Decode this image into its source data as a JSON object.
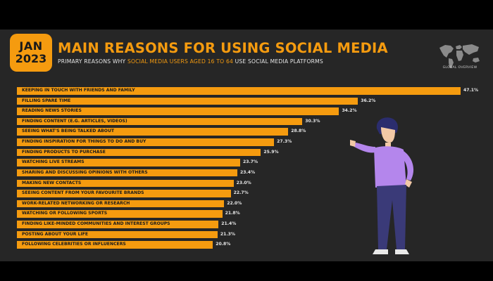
{
  "header": {
    "badge_month": "JAN",
    "badge_year": "2023",
    "title": "MAIN REASONS FOR USING SOCIAL MEDIA",
    "subtitle_prefix": "PRIMARY REASONS WHY ",
    "subtitle_highlight": "SOCIAL MEDIA USERS AGED 16 TO 64",
    "subtitle_suffix": " USE SOCIAL MEDIA PLATFORMS",
    "logo_label": "GLOBAL OVERVIEW"
  },
  "colors": {
    "accent": "#f59b0f",
    "panel": "#262626",
    "background": "#000000"
  },
  "chart_data": {
    "type": "bar",
    "orientation": "horizontal",
    "categories": [
      "KEEPING IN TOUCH WITH FRIENDS AND FAMILY",
      "FILLING SPARE TIME",
      "READING NEWS STORIES",
      "FINDING CONTENT (E.G. ARTICLES, VIDEOS)",
      "SEEING WHAT'S BEING TALKED ABOUT",
      "FINDING INSPIRATION FOR THINGS TO DO AND BUY",
      "FINDING PRODUCTS TO PURCHASE",
      "WATCHING LIVE STREAMS",
      "SHARING AND DISCUSSING OPINIONS WITH OTHERS",
      "MAKING NEW CONTACTS",
      "SEEING CONTENT FROM YOUR FAVOURITE BRANDS",
      "WORK-RELATED NETWORKING OR RESEARCH",
      "WATCHING OR FOLLOWING SPORTS",
      "FINDING LIKE-MINDED COMMUNITIES AND INTEREST GROUPS",
      "POSTING ABOUT YOUR LIFE",
      "FOLLOWING CELEBRITIES OR INFLUENCERS"
    ],
    "values": [
      47.1,
      36.2,
      34.2,
      30.3,
      28.8,
      27.3,
      25.9,
      23.7,
      23.4,
      23.0,
      22.7,
      22.0,
      21.8,
      21.4,
      21.3,
      20.8
    ],
    "value_labels": [
      "47.1%",
      "36.2%",
      "34.2%",
      "30.3%",
      "28.8%",
      "27.3%",
      "25.9%",
      "23.7%",
      "23.4%",
      "23.0%",
      "22.7%",
      "22.0%",
      "21.8%",
      "21.4%",
      "21.3%",
      "20.8%"
    ],
    "xlim": [
      0,
      47.1
    ],
    "grid": false,
    "legend": "none"
  }
}
